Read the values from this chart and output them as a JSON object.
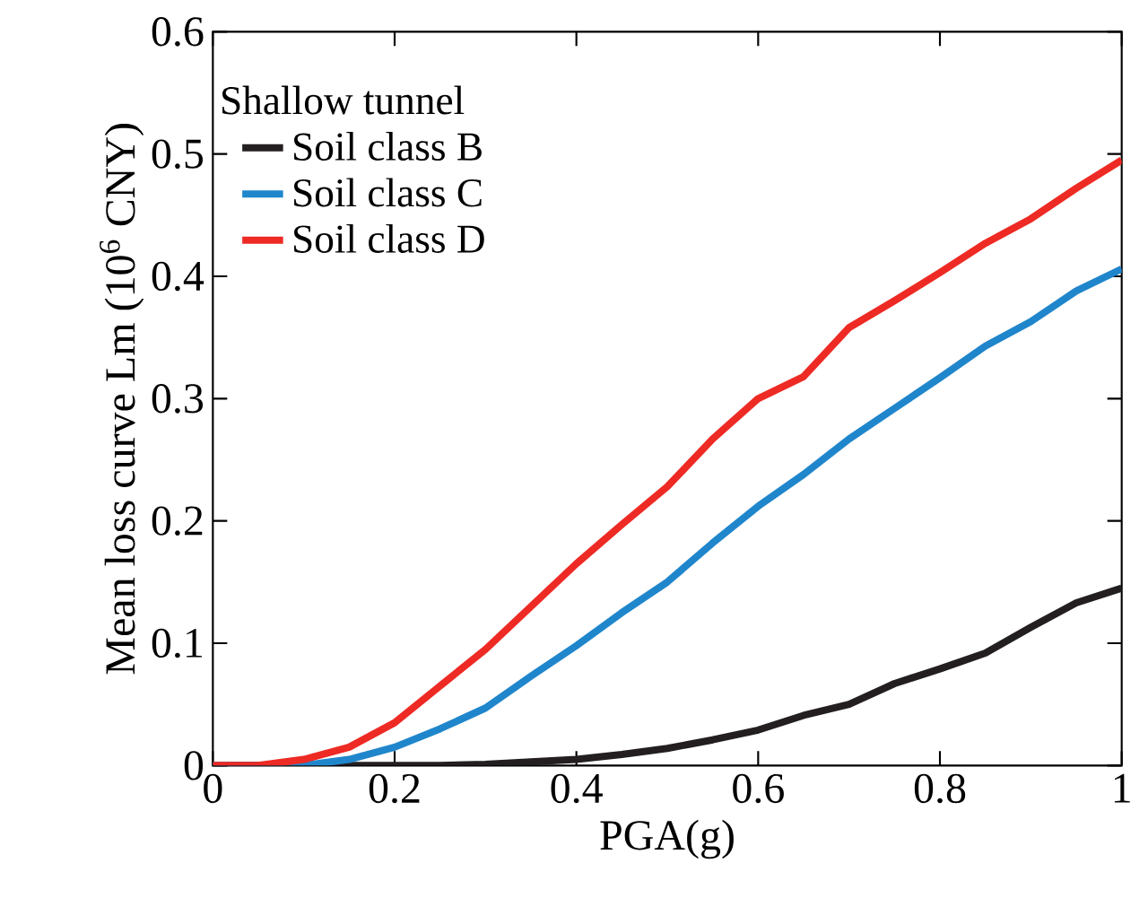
{
  "chart_data": {
    "type": "line",
    "xlabel": "PGA(g)",
    "ylabel": "Mean loss curve Lm (10$^{6}$ CNY)",
    "legend_title": "Shallow tunnel",
    "x": [
      0,
      0.05,
      0.1,
      0.15,
      0.2,
      0.25,
      0.3,
      0.35,
      0.4,
      0.45,
      0.5,
      0.55,
      0.6,
      0.65,
      0.7,
      0.75,
      0.8,
      0.85,
      0.9,
      0.95,
      1
    ],
    "series": [
      {
        "name": "Soil class B",
        "color": "#231f20",
        "values": [
          0,
          0,
          0,
          0,
          0,
          0,
          0.001,
          0.003,
          0.005,
          0.009,
          0.014,
          0.021,
          0.029,
          0.041,
          0.05,
          0.067,
          0.079,
          0.092,
          0.113,
          0.133,
          0.145
        ]
      },
      {
        "name": "Soil class C",
        "color": "#2086cc",
        "values": [
          0,
          0,
          0,
          0.005,
          0.015,
          0.03,
          0.047,
          0.073,
          0.098,
          0.125,
          0.15,
          0.182,
          0.212,
          0.238,
          0.267,
          0.292,
          0.317,
          0.343,
          0.363,
          0.388,
          0.406
        ]
      },
      {
        "name": "Soil class D",
        "color": "#ee2a24",
        "values": [
          0,
          0,
          0.005,
          0.015,
          0.035,
          0.065,
          0.095,
          0.13,
          0.165,
          0.197,
          0.228,
          0.267,
          0.3,
          0.318,
          0.358,
          0.38,
          0.403,
          0.427,
          0.447,
          0.472,
          0.495
        ]
      }
    ],
    "xlim": [
      0,
      1
    ],
    "xticks": [
      0,
      0.2,
      0.4,
      0.6,
      0.8,
      1
    ],
    "ylim": [
      0,
      0.6
    ],
    "yticks": [
      0,
      0.1,
      0.2,
      0.3,
      0.4,
      0.5,
      0.6
    ],
    "legend": "top left",
    "grid": false,
    "marker": "none",
    "line_style": "solid"
  }
}
